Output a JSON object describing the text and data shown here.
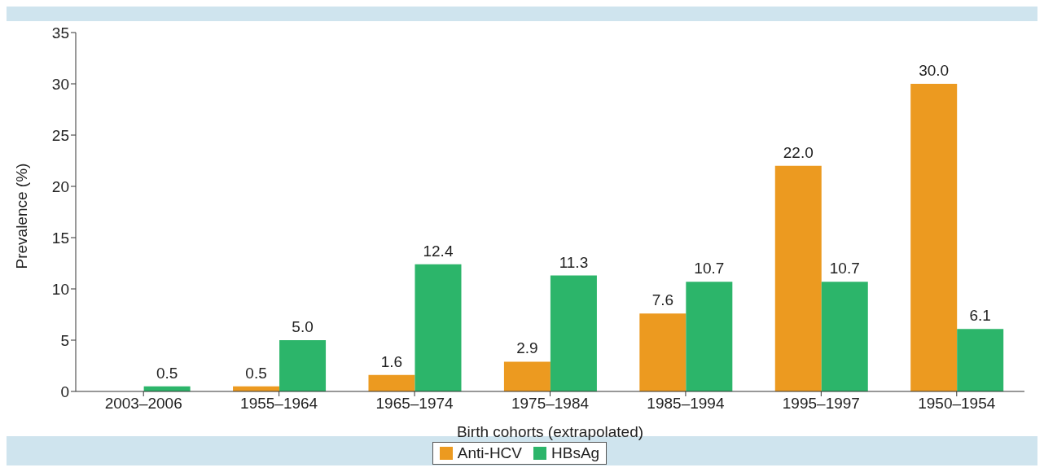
{
  "chart_data": {
    "type": "bar",
    "xlabel": "Birth cohorts (extrapolated)",
    "ylabel": "Prevalence (%)",
    "categories": [
      "2003–2006",
      "1955–1964",
      "1965–1974",
      "1975–1984",
      "1985–1994",
      "1995–1997",
      "1950–1954"
    ],
    "series": [
      {
        "name": "Anti-HCV",
        "color": "#ec9a20",
        "values": [
          null,
          0.5,
          1.6,
          2.9,
          7.6,
          22.0,
          30.0
        ],
        "value_labels": [
          null,
          "0.5",
          "1.6",
          "2.9",
          "7.6",
          "22.0",
          "30.0"
        ]
      },
      {
        "name": "HBsAg",
        "color": "#2cb56a",
        "values": [
          0.5,
          5.0,
          12.4,
          11.3,
          10.7,
          10.7,
          6.1
        ],
        "value_labels": [
          "0.5",
          "5.0",
          "12.4",
          "11.3",
          "10.7",
          "10.7",
          "6.1"
        ]
      }
    ],
    "ylim": [
      0,
      35
    ],
    "yticks": [
      0,
      5,
      10,
      15,
      20,
      25,
      30,
      35
    ],
    "grid": false,
    "legend": "bottom"
  }
}
